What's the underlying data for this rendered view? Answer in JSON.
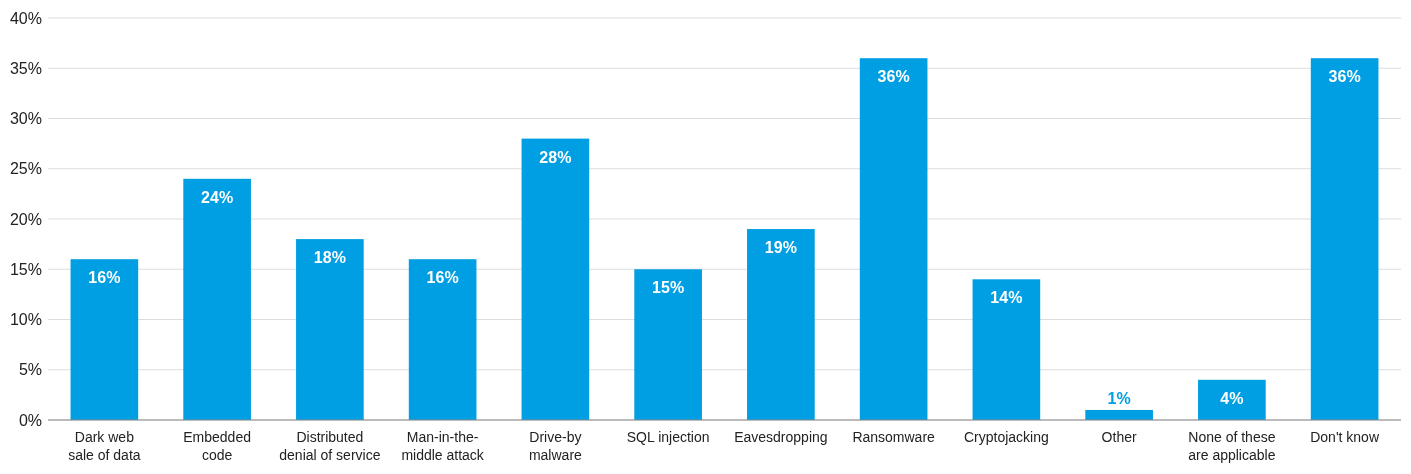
{
  "chart_data": {
    "type": "bar",
    "categories": [
      "Dark web sale of data",
      "Embedded code",
      "Distributed denial of service",
      "Man-in-the-middle attack",
      "Drive-by malware",
      "SQL injection",
      "Eavesdropping",
      "Ransomware",
      "Cryptojacking",
      "Other",
      "None of these are applicable",
      "Don't know"
    ],
    "values": [
      16,
      24,
      18,
      16,
      28,
      15,
      19,
      36,
      14,
      1,
      4,
      36
    ],
    "value_labels": [
      "16%",
      "24%",
      "18%",
      "16%",
      "28%",
      "15%",
      "19%",
      "36%",
      "14%",
      "1%",
      "4%",
      "36%"
    ],
    "color": "#009fe3",
    "ylim": [
      0,
      40
    ],
    "yticks": [
      {
        "value": 0,
        "label": "0%"
      },
      {
        "value": 5,
        "label": "5%"
      },
      {
        "value": 10,
        "label": "10%"
      },
      {
        "value": 15,
        "label": "15%"
      },
      {
        "value": 20,
        "label": "20%"
      },
      {
        "value": 25,
        "label": "25%"
      },
      {
        "value": 30,
        "label": "30%"
      },
      {
        "value": 35,
        "label": "35%"
      },
      {
        "value": 40,
        "label": "40%"
      }
    ],
    "grid": "y"
  }
}
